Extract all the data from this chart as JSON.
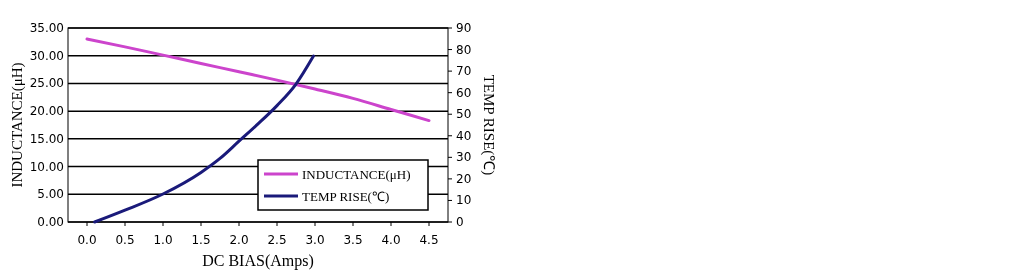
{
  "chart_data": {
    "type": "line",
    "xlabel": "DC BIAS(Amps)",
    "ylabel": "INDUCTANCE(μH)",
    "y2label": "TEMP RISE(℃)",
    "xlim": [
      -0.25,
      4.75
    ],
    "xticks": [
      {
        "value": 0,
        "label": "0.0"
      },
      {
        "value": 0.5,
        "label": "0.5"
      },
      {
        "value": 1,
        "label": "1.0"
      },
      {
        "value": 1.5,
        "label": "1.5"
      },
      {
        "value": 2,
        "label": "2.0"
      },
      {
        "value": 2.5,
        "label": "2.5"
      },
      {
        "value": 3,
        "label": "3.0"
      },
      {
        "value": 3.5,
        "label": "3.5"
      },
      {
        "value": 4,
        "label": "4.0"
      },
      {
        "value": 4.5,
        "label": "4.5"
      }
    ],
    "ylim": [
      0,
      35
    ],
    "yticks": [
      {
        "value": 0,
        "label": "0.00"
      },
      {
        "value": 5,
        "label": "5.00"
      },
      {
        "value": 10,
        "label": "10.00"
      },
      {
        "value": 15,
        "label": "15.00"
      },
      {
        "value": 20,
        "label": "20.00"
      },
      {
        "value": 25,
        "label": "25.00"
      },
      {
        "value": 30,
        "label": "30.00"
      },
      {
        "value": 35,
        "label": "35.00"
      }
    ],
    "y2lim": [
      0,
      90
    ],
    "y2ticks": [
      0,
      10,
      20,
      30,
      40,
      50,
      60,
      70,
      80,
      90
    ],
    "grid": "y",
    "legend": "bottom right",
    "series": [
      {
        "name": "INDUCTANCE(μH)",
        "color": "#cc44cc",
        "x": [
          0,
          0.5,
          1,
          1.5,
          2,
          2.5,
          3,
          3.5,
          4,
          4.5
        ],
        "values": [
          33,
          31.6,
          30.1,
          28.6,
          27.1,
          25.6,
          24,
          22.3,
          20.3,
          18.3
        ]
      },
      {
        "name": "TEMP RISE(℃)",
        "color": "#1a1a7a",
        "axis": "y2",
        "x": [
          0.1,
          0.5,
          1,
          1.5,
          1.75,
          2,
          2.25,
          2.5,
          2.75,
          2.98
        ],
        "values": [
          0,
          5.5,
          13,
          23,
          29.5,
          37.5,
          45.5,
          54,
          64,
          77
        ]
      }
    ]
  }
}
